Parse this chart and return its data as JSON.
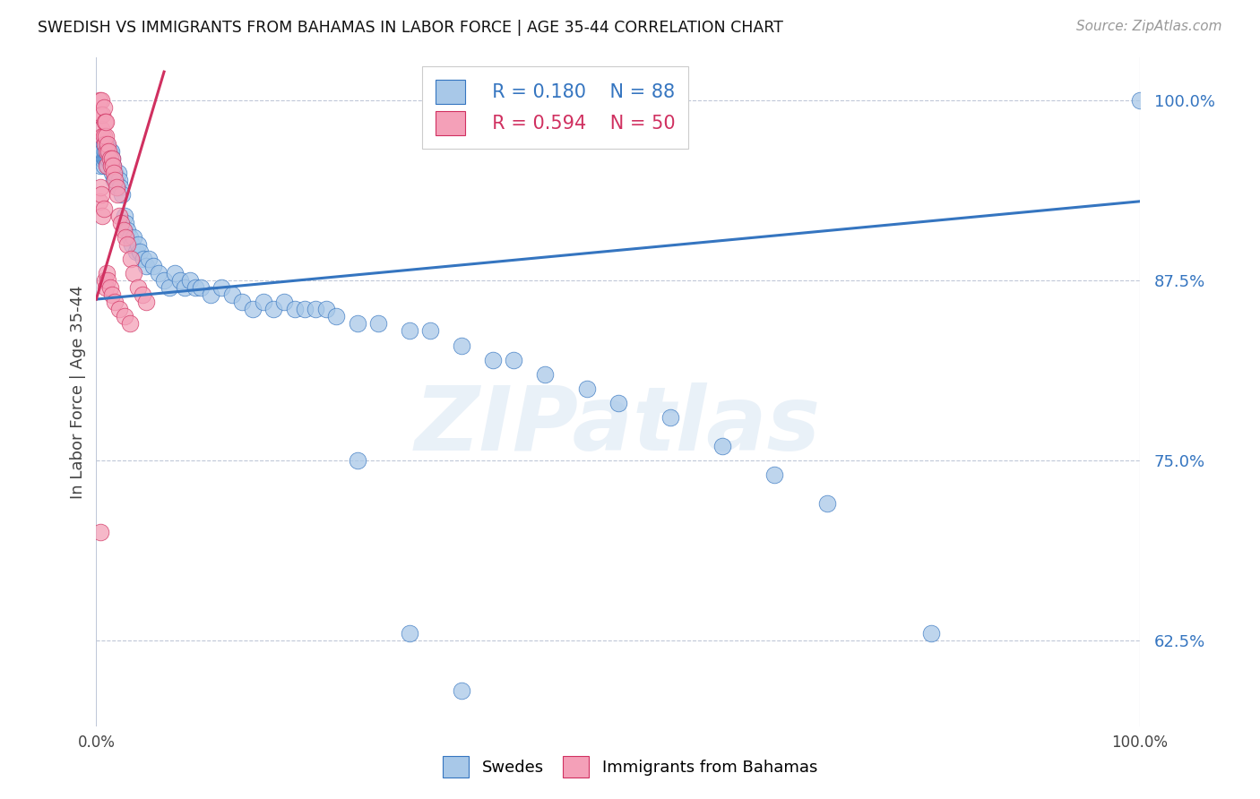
{
  "title": "SWEDISH VS IMMIGRANTS FROM BAHAMAS IN LABOR FORCE | AGE 35-44 CORRELATION CHART",
  "source": "Source: ZipAtlas.com",
  "ylabel": "In Labor Force | Age 35-44",
  "ytick_labels": [
    "62.5%",
    "75.0%",
    "87.5%",
    "100.0%"
  ],
  "ytick_values": [
    0.625,
    0.75,
    0.875,
    1.0
  ],
  "xrange": [
    0.0,
    1.0
  ],
  "yrange": [
    0.565,
    1.03
  ],
  "blue_color": "#a8c8e8",
  "pink_color": "#f4a0b8",
  "blue_line_color": "#3575c0",
  "pink_line_color": "#d03060",
  "blue_trend": [
    0.0,
    1.0,
    0.862,
    0.93
  ],
  "pink_trend_x": [
    0.0,
    0.065
  ],
  "pink_trend_y": [
    0.862,
    1.02
  ],
  "watermark_text": "ZIPatlas",
  "legend_R_blue": "R = 0.180",
  "legend_N_blue": "N = 88",
  "legend_R_pink": "R = 0.594",
  "legend_N_pink": "N = 50",
  "swedes_x": [
    0.003,
    0.004,
    0.005,
    0.005,
    0.006,
    0.006,
    0.007,
    0.007,
    0.007,
    0.008,
    0.008,
    0.009,
    0.009,
    0.01,
    0.01,
    0.01,
    0.011,
    0.011,
    0.012,
    0.012,
    0.013,
    0.013,
    0.014,
    0.015,
    0.015,
    0.016,
    0.017,
    0.018,
    0.019,
    0.02,
    0.021,
    0.022,
    0.023,
    0.025,
    0.027,
    0.028,
    0.03,
    0.032,
    0.034,
    0.036,
    0.038,
    0.04,
    0.042,
    0.045,
    0.048,
    0.05,
    0.055,
    0.06,
    0.065,
    0.07,
    0.075,
    0.08,
    0.085,
    0.09,
    0.095,
    0.1,
    0.11,
    0.12,
    0.13,
    0.14,
    0.15,
    0.16,
    0.17,
    0.18,
    0.19,
    0.2,
    0.21,
    0.22,
    0.23,
    0.25,
    0.27,
    0.3,
    0.32,
    0.35,
    0.38,
    0.4,
    0.43,
    0.47,
    0.5,
    0.55,
    0.6,
    0.65,
    0.7,
    0.8,
    1.0,
    0.25,
    0.3,
    0.35
  ],
  "swedes_y": [
    0.965,
    0.955,
    0.96,
    0.97,
    0.96,
    0.965,
    0.96,
    0.97,
    0.955,
    0.96,
    0.965,
    0.96,
    0.97,
    0.96,
    0.965,
    0.97,
    0.955,
    0.96,
    0.96,
    0.965,
    0.965,
    0.96,
    0.965,
    0.95,
    0.96,
    0.955,
    0.945,
    0.95,
    0.945,
    0.94,
    0.95,
    0.945,
    0.94,
    0.935,
    0.92,
    0.915,
    0.91,
    0.905,
    0.9,
    0.905,
    0.895,
    0.9,
    0.895,
    0.89,
    0.885,
    0.89,
    0.885,
    0.88,
    0.875,
    0.87,
    0.88,
    0.875,
    0.87,
    0.875,
    0.87,
    0.87,
    0.865,
    0.87,
    0.865,
    0.86,
    0.855,
    0.86,
    0.855,
    0.86,
    0.855,
    0.855,
    0.855,
    0.855,
    0.85,
    0.845,
    0.845,
    0.84,
    0.84,
    0.83,
    0.82,
    0.82,
    0.81,
    0.8,
    0.79,
    0.78,
    0.76,
    0.74,
    0.72,
    0.63,
    1.0,
    0.75,
    0.63,
    0.59
  ],
  "bahamas_x": [
    0.003,
    0.004,
    0.005,
    0.005,
    0.006,
    0.006,
    0.007,
    0.007,
    0.008,
    0.008,
    0.009,
    0.009,
    0.01,
    0.01,
    0.011,
    0.012,
    0.013,
    0.014,
    0.015,
    0.016,
    0.017,
    0.018,
    0.019,
    0.02,
    0.022,
    0.024,
    0.026,
    0.028,
    0.03,
    0.033,
    0.036,
    0.04,
    0.044,
    0.048,
    0.003,
    0.004,
    0.005,
    0.006,
    0.007,
    0.008,
    0.009,
    0.01,
    0.011,
    0.013,
    0.015,
    0.018,
    0.022,
    0.027,
    0.032,
    0.004
  ],
  "bahamas_y": [
    1.0,
    0.99,
    0.98,
    1.0,
    0.975,
    0.99,
    0.975,
    0.995,
    0.97,
    0.985,
    0.975,
    0.985,
    0.955,
    0.965,
    0.97,
    0.965,
    0.96,
    0.955,
    0.96,
    0.955,
    0.95,
    0.945,
    0.94,
    0.935,
    0.92,
    0.915,
    0.91,
    0.905,
    0.9,
    0.89,
    0.88,
    0.87,
    0.865,
    0.86,
    0.93,
    0.94,
    0.935,
    0.92,
    0.925,
    0.875,
    0.87,
    0.88,
    0.875,
    0.87,
    0.865,
    0.86,
    0.855,
    0.85,
    0.845,
    0.7
  ]
}
